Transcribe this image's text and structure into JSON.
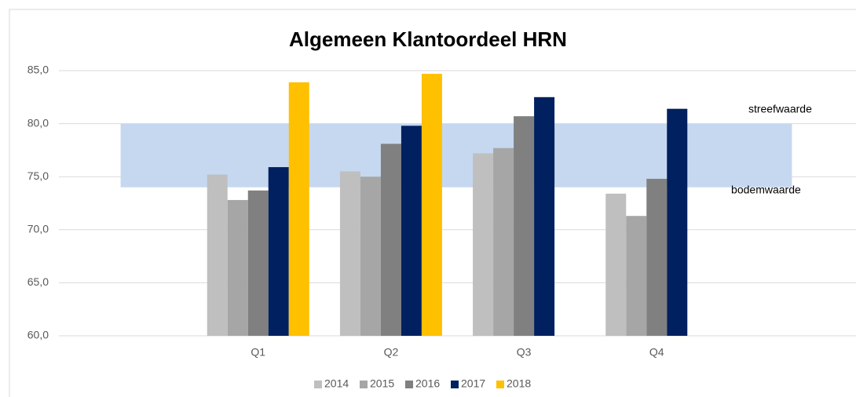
{
  "chart_data": {
    "type": "bar",
    "title": "Algemeen Klantoordeel HRN",
    "categories": [
      null,
      "Q1",
      "Q2",
      "Q3",
      "Q4",
      null
    ],
    "series": [
      {
        "name": "2014",
        "color": "#bfbfbf",
        "values": [
          null,
          75.2,
          75.5,
          77.2,
          73.4,
          null
        ]
      },
      {
        "name": "2015",
        "color": "#a6a6a6",
        "values": [
          null,
          72.8,
          75.0,
          77.7,
          71.3,
          null
        ]
      },
      {
        "name": "2016",
        "color": "#808080",
        "values": [
          null,
          73.7,
          78.1,
          80.7,
          74.8,
          null
        ]
      },
      {
        "name": "2017",
        "color": "#002060",
        "values": [
          null,
          75.9,
          79.8,
          82.5,
          81.4,
          null
        ]
      },
      {
        "name": "2018",
        "color": "#ffc000",
        "values": [
          null,
          83.9,
          84.7,
          null,
          null,
          null
        ]
      }
    ],
    "target_band": {
      "low": 74,
      "high": 80,
      "color": "#c6d8f0",
      "low_label": "bodemwaarde",
      "high_label": "streefwaarde"
    },
    "ylim": [
      60,
      85
    ],
    "yticks": [
      {
        "value": 60,
        "label": "60,0"
      },
      {
        "value": 65,
        "label": "65,0"
      },
      {
        "value": 70,
        "label": "70,0"
      },
      {
        "value": 75,
        "label": "75,0"
      },
      {
        "value": 80,
        "label": "80,0"
      },
      {
        "value": 85,
        "label": "85,0"
      }
    ],
    "grid": true,
    "legend": "bottom"
  }
}
